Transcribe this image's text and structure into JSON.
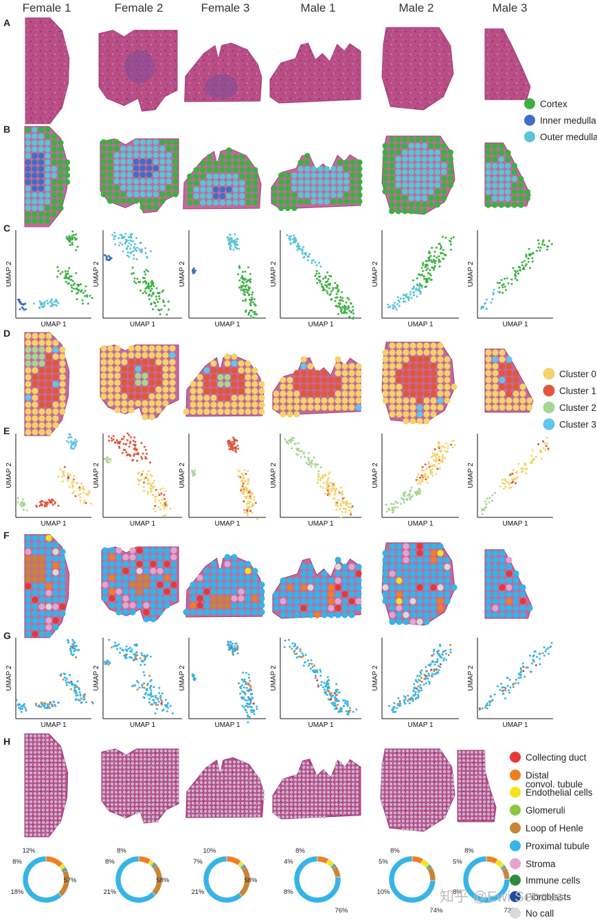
{
  "columns": [
    "Female 1",
    "Female 2",
    "Female 3",
    "Male 1",
    "Male 2",
    "Male 3"
  ],
  "row_labels": [
    "A",
    "B",
    "C",
    "D",
    "E",
    "F",
    "G",
    "H"
  ],
  "axis": {
    "x": "UMAP 1",
    "y": "UMAP 2"
  },
  "legend_regions": [
    {
      "label": "Cortex",
      "color": "#3cb043"
    },
    {
      "label": "Inner medulla",
      "color": "#3f6fc4"
    },
    {
      "label": "Outer medulla",
      "color": "#5bc4d6"
    }
  ],
  "legend_clusters": [
    {
      "label": "Cluster 0",
      "color": "#f5d36b"
    },
    {
      "label": "Cluster 1",
      "color": "#e0573e"
    },
    {
      "label": "Cluster 2",
      "color": "#a6d694"
    },
    {
      "label": "Cluster 3",
      "color": "#62c5ec"
    }
  ],
  "legend_celltypes": [
    {
      "label": "Collecting duct",
      "color": "#e53935"
    },
    {
      "label": "Distal",
      "label2": "convol. tubule",
      "color": "#f07f22"
    },
    {
      "label": "Endothelial cells",
      "color": "#f5e31e"
    },
    {
      "label": "Glomeruli",
      "color": "#8cc63f"
    },
    {
      "label": "Loop of Henle",
      "color": "#c98436"
    },
    {
      "label": "Proximal tubule",
      "color": "#36b4e8"
    },
    {
      "label": "Stroma",
      "color": "#e3a5d0"
    },
    {
      "label": "Immune cells",
      "color": "#2e8b3c"
    },
    {
      "label": "Fibroblasts",
      "color": "#1f4e9e"
    },
    {
      "label": "No call",
      "color": "#d9d9d9"
    }
  ],
  "composition_labels": [
    [
      "12%",
      "8%",
      "18%",
      "57%"
    ],
    [
      "8%",
      "8%",
      "21%",
      "58%"
    ],
    [
      "10%",
      "7%",
      "21%",
      "58%"
    ],
    [
      "8%",
      "4%",
      "8%",
      "76%"
    ],
    [
      "8%",
      "5%",
      "10%",
      "74%"
    ],
    [
      "8%",
      "5%",
      "8%",
      "73%"
    ]
  ],
  "chart_data": [
    {
      "type": "pie",
      "categories": [
        "Distal convol. tubule",
        "Endothelial cells",
        "Glomeruli",
        "Immune cells",
        "Fibroblasts",
        "Loop of Henle",
        "Proximal tubule"
      ],
      "values": [
        12,
        2,
        1,
        1,
        1,
        18,
        57
      ]
    },
    {
      "type": "pie",
      "categories": [
        "Distal convol. tubule",
        "Endothelial cells",
        "Glomeruli",
        "Immune cells",
        "Fibroblasts",
        "Loop of Henle",
        "Proximal tubule"
      ],
      "values": [
        8,
        2,
        1,
        1,
        1,
        21,
        58
      ]
    },
    {
      "type": "pie",
      "categories": [
        "Distal convol. tubule",
        "Endothelial cells",
        "Glomeruli",
        "Immune cells",
        "Fibroblasts",
        "Loop of Henle",
        "Proximal tubule"
      ],
      "values": [
        10,
        2,
        1,
        1,
        1,
        21,
        58
      ]
    },
    {
      "type": "pie",
      "categories": [
        "Distal convol. tubule",
        "Endothelial cells",
        "Glomeruli",
        "Immune cells",
        "Fibroblasts",
        "Loop of Henle",
        "Proximal tubule"
      ],
      "values": [
        8,
        4,
        1,
        1,
        1,
        8,
        76
      ]
    },
    {
      "type": "pie",
      "categories": [
        "Distal convol. tubule",
        "Endothelial cells",
        "Glomeruli",
        "Immune cells",
        "Fibroblasts",
        "Loop of Henle",
        "Proximal tubule"
      ],
      "values": [
        8,
        5,
        1,
        1,
        1,
        10,
        74
      ]
    },
    {
      "type": "pie",
      "categories": [
        "Distal convol. tubule",
        "Endothelial cells",
        "Glomeruli",
        "Immune cells",
        "Fibroblasts",
        "Loop of Henle",
        "Proximal tubule"
      ],
      "values": [
        8,
        5,
        1,
        1,
        1,
        8,
        73
      ]
    }
  ],
  "watermark": "知乎 @Ewi Seneus"
}
